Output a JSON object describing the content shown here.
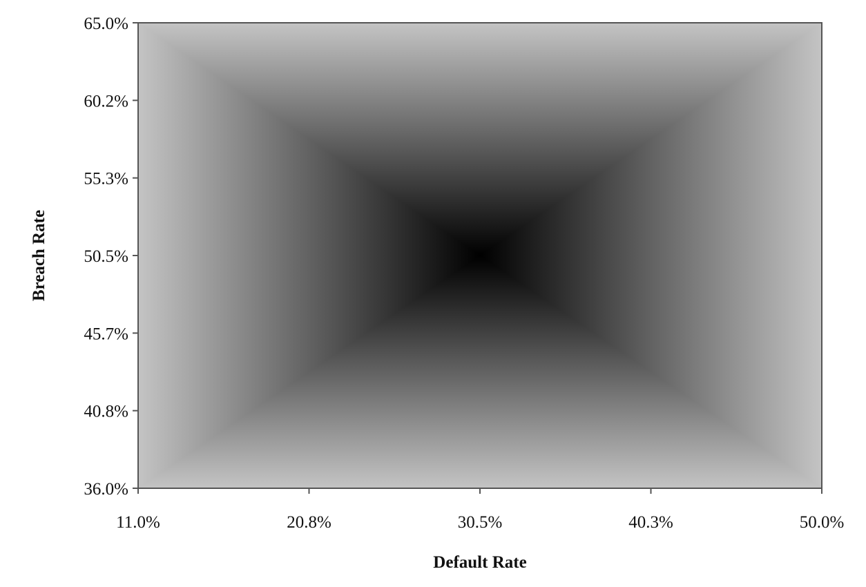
{
  "chart_data": {
    "type": "heatmap",
    "title": "",
    "xlabel": "Default Rate",
    "ylabel": "Breach Rate",
    "x_ticks": [
      "11.0%",
      "20.8%",
      "30.5%",
      "40.3%",
      "50.0%"
    ],
    "y_ticks": [
      "36.0%",
      "40.8%",
      "45.7%",
      "50.5%",
      "55.3%",
      "60.2%",
      "65.0%"
    ],
    "xlim": [
      11.0,
      50.0
    ],
    "ylim": [
      36.0,
      65.0
    ],
    "minimum_point": {
      "x": 30.5,
      "y": 50.5
    },
    "shading": "grayscale, darkest at minimum, lighter toward edges",
    "colors": {
      "dark": "#000000",
      "light": "#c4c4c4"
    },
    "grid": false,
    "legend": "none"
  }
}
